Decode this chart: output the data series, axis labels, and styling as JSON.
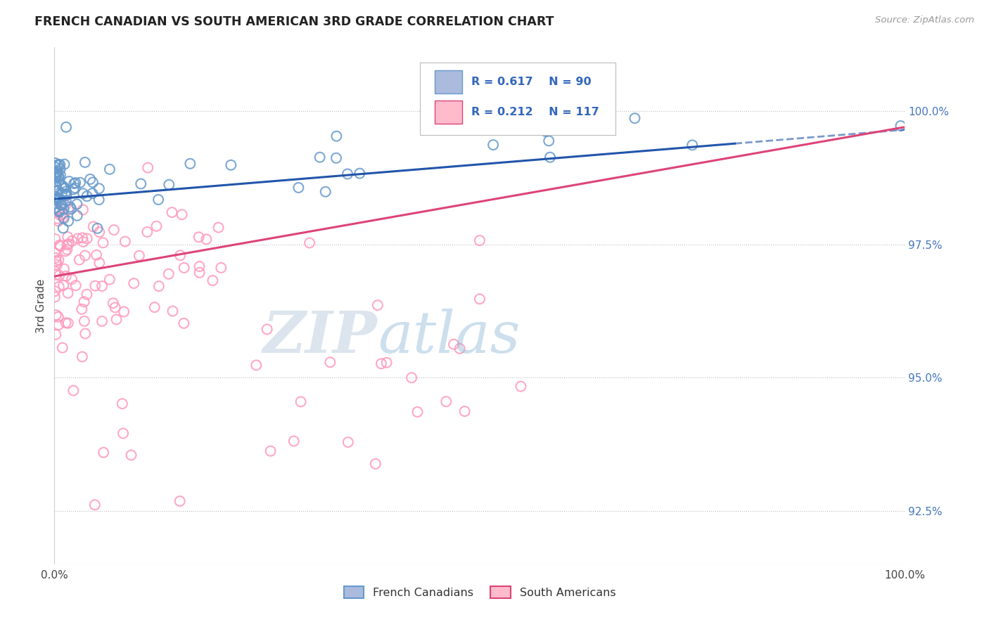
{
  "title": "FRENCH CANADIAN VS SOUTH AMERICAN 3RD GRADE CORRELATION CHART",
  "source": "Source: ZipAtlas.com",
  "ylabel": "3rd Grade",
  "y_ticks": [
    92.5,
    95.0,
    97.5,
    100.0
  ],
  "y_tick_labels": [
    "92.5%",
    "95.0%",
    "97.5%",
    "100.0%"
  ],
  "xlim": [
    0.0,
    100.0
  ],
  "ylim": [
    91.5,
    101.2
  ],
  "blue_R": 0.617,
  "blue_N": 90,
  "pink_R": 0.212,
  "pink_N": 117,
  "blue_color": "#6699CC",
  "pink_color": "#FF99BB",
  "blue_trend_color": "#2255AA",
  "pink_trend_color": "#DD4477",
  "legend_blue_label": "French Canadians",
  "legend_pink_label": "South Americans",
  "blue_seed": 42,
  "pink_seed": 99
}
